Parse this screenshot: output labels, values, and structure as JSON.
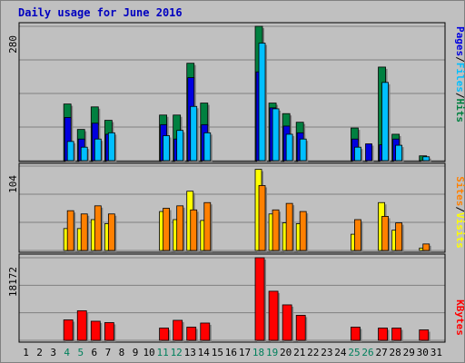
{
  "chart_data": [
    {
      "type": "bar",
      "title": "Daily usage for June 2016",
      "x": [
        1,
        2,
        3,
        4,
        5,
        6,
        7,
        8,
        9,
        10,
        11,
        12,
        13,
        14,
        15,
        16,
        17,
        18,
        19,
        20,
        21,
        22,
        23,
        24,
        25,
        26,
        27,
        28,
        29,
        30,
        31
      ],
      "weekend_days": [
        4,
        5,
        11,
        12,
        18,
        19,
        25,
        26
      ],
      "ymax_label": "280",
      "ylim": [
        0,
        280
      ],
      "series": [
        {
          "name": "Pages",
          "color": "#0000e0",
          "values": [
            0,
            0,
            0,
            90,
            45,
            78,
            55,
            0,
            0,
            0,
            75,
            45,
            173,
            75,
            0,
            0,
            0,
            185,
            110,
            72,
            58,
            0,
            0,
            0,
            45,
            35,
            33,
            45,
            0,
            0,
            0
          ]
        },
        {
          "name": "Files",
          "color": "#00bfff",
          "values": [
            0,
            0,
            0,
            40,
            28,
            45,
            58,
            0,
            0,
            0,
            52,
            63,
            113,
            58,
            0,
            0,
            0,
            245,
            108,
            55,
            45,
            0,
            0,
            0,
            28,
            0,
            163,
            32,
            0,
            8,
            0
          ]
        },
        {
          "name": "Hits",
          "color": "#008040",
          "values": [
            0,
            0,
            0,
            118,
            65,
            112,
            84,
            0,
            0,
            0,
            95,
            95,
            203,
            120,
            0,
            0,
            0,
            280,
            120,
            98,
            80,
            0,
            0,
            0,
            68,
            0,
            195,
            55,
            0,
            10,
            0
          ]
        }
      ]
    },
    {
      "type": "bar",
      "ymax_label": "104",
      "ylim": [
        0,
        104
      ],
      "series": [
        {
          "name": "Sites",
          "color": "#ff8000",
          "values": [
            0,
            0,
            0,
            49,
            45,
            55,
            45,
            0,
            0,
            0,
            52,
            55,
            50,
            59,
            0,
            0,
            0,
            80,
            50,
            58,
            48,
            0,
            0,
            0,
            38,
            0,
            42,
            34,
            0,
            8,
            0
          ]
        },
        {
          "name": "Visits",
          "color": "#ffff00",
          "values": [
            0,
            0,
            0,
            27,
            27,
            38,
            33,
            0,
            0,
            0,
            48,
            38,
            73,
            37,
            0,
            0,
            0,
            100,
            45,
            34,
            33,
            0,
            0,
            0,
            20,
            0,
            59,
            25,
            0,
            3,
            0
          ]
        }
      ]
    },
    {
      "type": "bar",
      "ymax_label": "18172",
      "ylim": [
        0,
        18172
      ],
      "series": [
        {
          "name": "KBytes",
          "color": "#ff0000",
          "values": [
            0,
            0,
            0,
            4500,
            6500,
            4200,
            3900,
            0,
            0,
            0,
            2700,
            4400,
            2900,
            3800,
            0,
            0,
            0,
            18172,
            10800,
            7800,
            5500,
            0,
            0,
            0,
            2900,
            0,
            2700,
            2700,
            0,
            2300,
            0
          ]
        }
      ]
    }
  ],
  "colors": {
    "background": "#c0c0c0",
    "panel": "#c0c0c0",
    "grid": "#808080",
    "weekday_label": "#000000",
    "weekend_label": "#00805c",
    "title": "#0000c0",
    "separator": "#000000"
  }
}
